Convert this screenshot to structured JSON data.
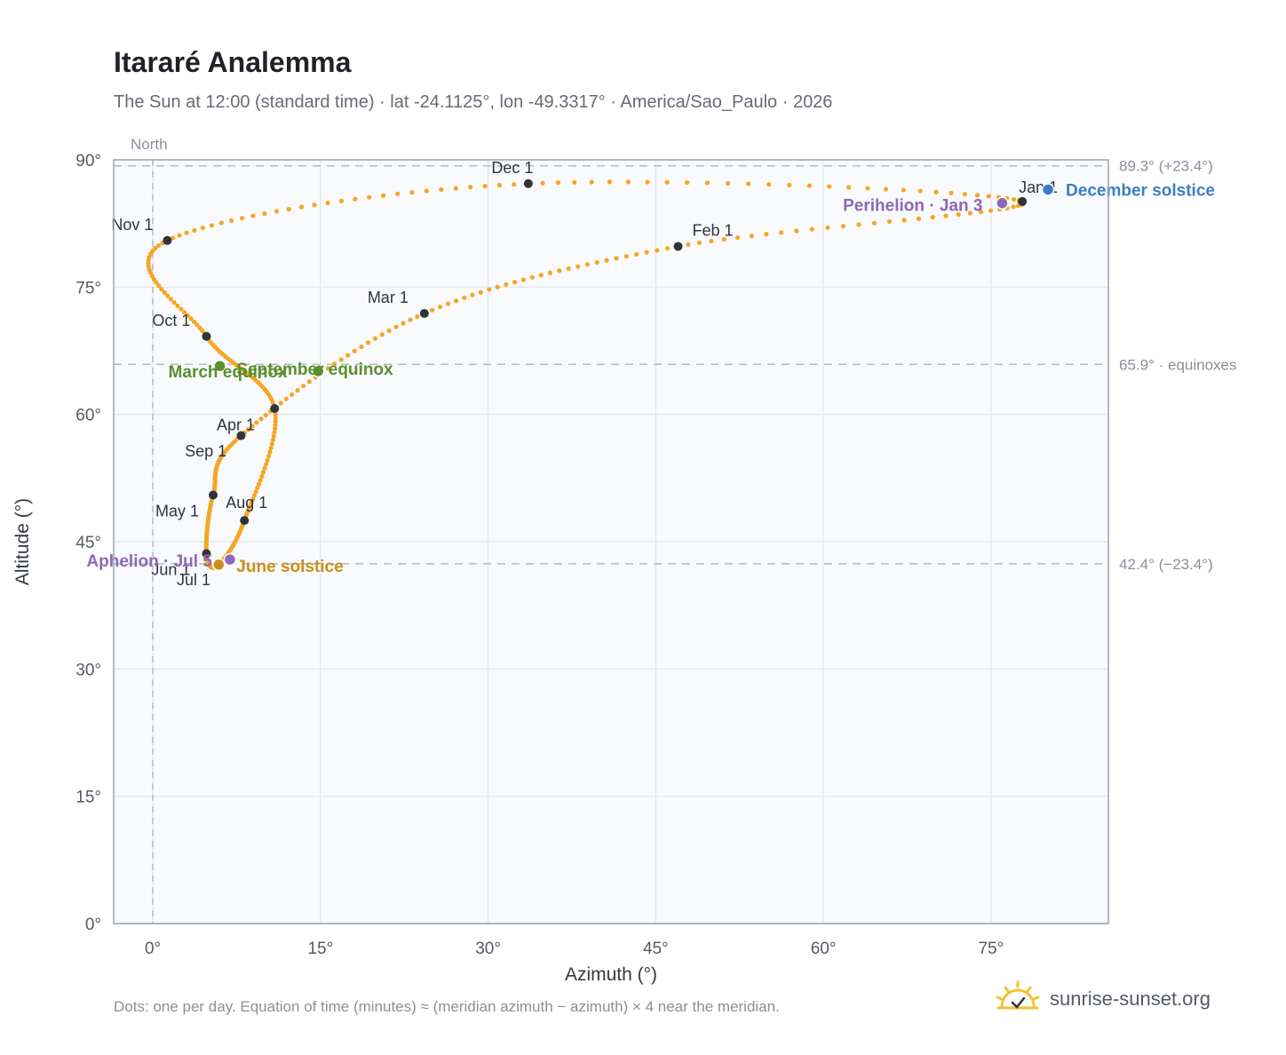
{
  "title": "Itararé Analemma",
  "subtitle": "The Sun at 12:00 (standard time) · lat -24.1125°, lon -49.3317° · America/Sao_Paulo · 2026",
  "footnote": "Dots: one per day. Equation of time (minutes) ≈ (meridian azimuth − azimuth) × 4 near the meridian.",
  "brand": {
    "name": "sunrise-sunset.org",
    "icon": "sun-check-icon"
  },
  "chart_data": {
    "type": "scatter",
    "xlabel": "Azimuth (°)",
    "ylabel": "Altitude (°)",
    "xlim": [
      -3.5,
      85.5
    ],
    "ylim": [
      0,
      90
    ],
    "x_ticks": [
      0,
      15,
      30,
      45,
      60,
      75
    ],
    "x_tick_labels": [
      "0°",
      "15°",
      "30°",
      "45°",
      "60°",
      "75°"
    ],
    "y_ticks": [
      0,
      15,
      30,
      45,
      60,
      75,
      90
    ],
    "y_tick_labels": [
      "0°",
      "15°",
      "30°",
      "45°",
      "60°",
      "75°",
      "90°"
    ],
    "grid": true,
    "north_line": {
      "x": 0,
      "label": "North"
    },
    "reference_lines": [
      {
        "y": 89.3,
        "label": "89.3° (+23.4°)"
      },
      {
        "y": 65.9,
        "label": "65.9° · equinoxes"
      },
      {
        "y": 42.4,
        "label": "42.4° (−23.4°)"
      }
    ],
    "path_color": "#f5a623",
    "month_markers": [
      {
        "label": "Jan 1",
        "x": 77.8,
        "y": 85.1
      },
      {
        "label": "Feb 1",
        "x": 47.0,
        "y": 79.8
      },
      {
        "label": "Mar 1",
        "x": 24.3,
        "y": 71.9
      },
      {
        "label": "Apr 1",
        "x": 7.9,
        "y": 57.5
      },
      {
        "label": "May 1",
        "x": 5.4,
        "y": 50.5
      },
      {
        "label": "Jun 1",
        "x": 4.8,
        "y": 43.6
      },
      {
        "label": "Jul 1",
        "x": 5.8,
        "y": 42.2
      },
      {
        "label": "Aug 1",
        "x": 8.2,
        "y": 47.5
      },
      {
        "label": "Sep 1",
        "x": 10.9,
        "y": 60.7
      },
      {
        "label": "Oct 1",
        "x": 4.8,
        "y": 69.2
      },
      {
        "label": "Nov 1",
        "x": 1.3,
        "y": 80.5
      },
      {
        "label": "Dec 1",
        "x": 33.6,
        "y": 87.2
      }
    ],
    "events": [
      {
        "label": "December solstice",
        "x": 80.1,
        "y": 86.5,
        "color": "#3b7dc4"
      },
      {
        "label": "Perihelion · Jan 3",
        "x": 76.0,
        "y": 84.9,
        "color": "#8e67b5"
      },
      {
        "label": "March equinox",
        "x": 6.0,
        "y": 65.7,
        "color": "#5a8f2e"
      },
      {
        "label": "September equinox",
        "x": 14.8,
        "y": 65.1,
        "color": "#5a8f2e"
      },
      {
        "label": "June solstice",
        "x": 5.9,
        "y": 42.3,
        "color": "#c8901a"
      },
      {
        "label": "Aphelion · Jul 5",
        "x": 6.9,
        "y": 42.9,
        "color": "#8e67b5"
      }
    ]
  }
}
